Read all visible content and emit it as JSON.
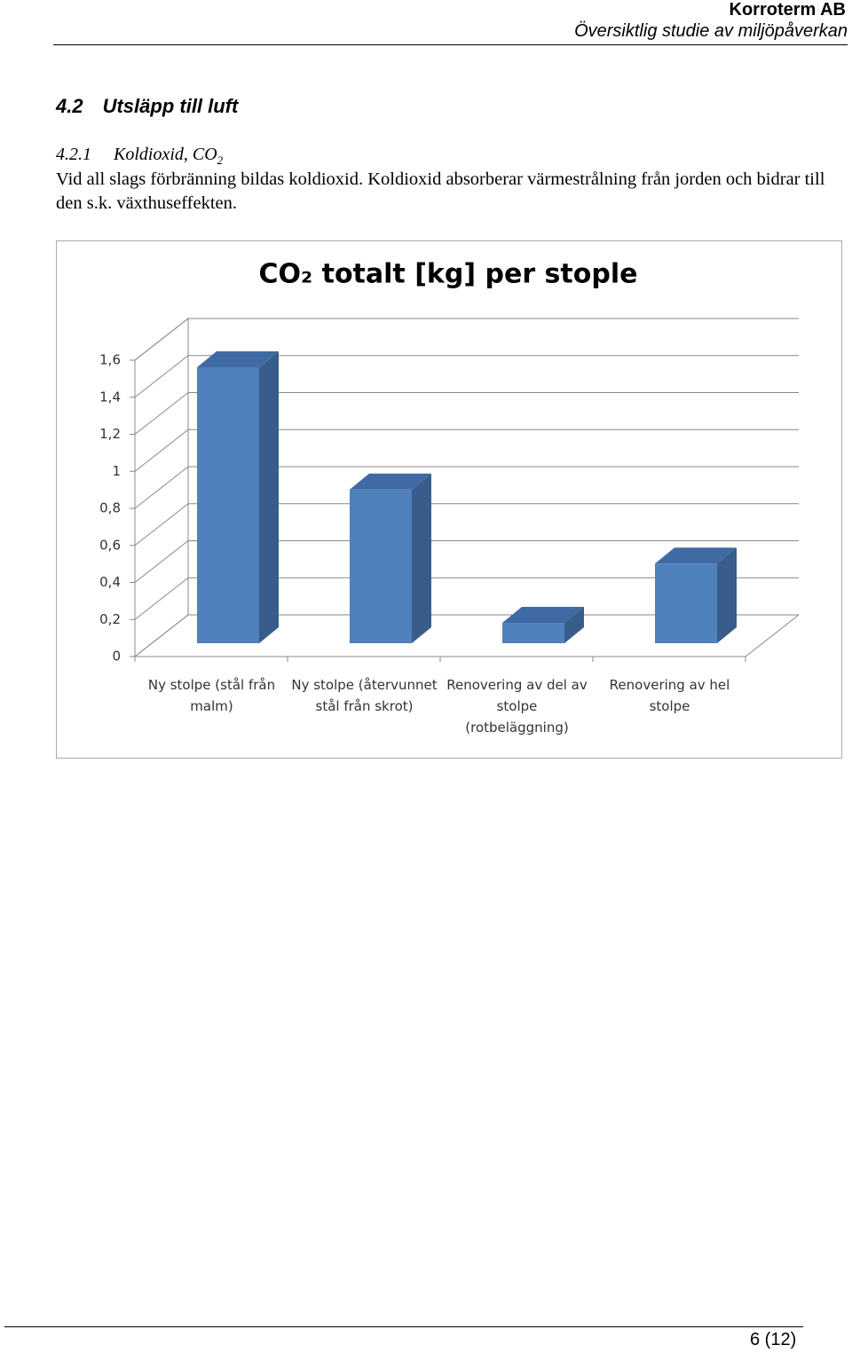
{
  "header": {
    "company": "Korroterm AB",
    "subtitle": "Översiktlig studie av miljöpåverkan"
  },
  "section": {
    "number": "4.2",
    "title": "Utsläpp till luft"
  },
  "subsection": {
    "number": "4.2.1",
    "title": "Koldioxid, CO",
    "subscript": "2"
  },
  "paragraph": "Vid all slags förbränning bildas koldioxid. Koldioxid absorberar värmestrålning från jorden och bidrar till den s.k. växthuseffekten.",
  "chart_data": {
    "type": "bar3d",
    "title": "CO₂ totalt [kg] per stople",
    "categories": [
      "Ny stolpe (stål från malm)",
      "Ny stolpe (återvunnet stål från skrot)",
      "Renovering av del av stolpe (rotbeläggning)",
      "Renovering av hel stolpe"
    ],
    "values": [
      1.49,
      0.83,
      0.11,
      0.43
    ],
    "color": "#4f81bd",
    "ylim": [
      0,
      1.6
    ],
    "yticks": [
      0,
      {
        "value": 0.2,
        "label": "0,2"
      },
      {
        "value": 0.4,
        "label": "0,4"
      },
      {
        "value": 0.6,
        "label": "0,6"
      },
      {
        "value": 0.8,
        "label": "0,8"
      },
      1,
      {
        "value": 1.2,
        "label": "1,2"
      },
      {
        "value": 1.4,
        "label": "1,4"
      },
      {
        "value": 1.6,
        "label": "1,6"
      }
    ],
    "grid": true
  },
  "footer": {
    "page": "6 (12)"
  }
}
